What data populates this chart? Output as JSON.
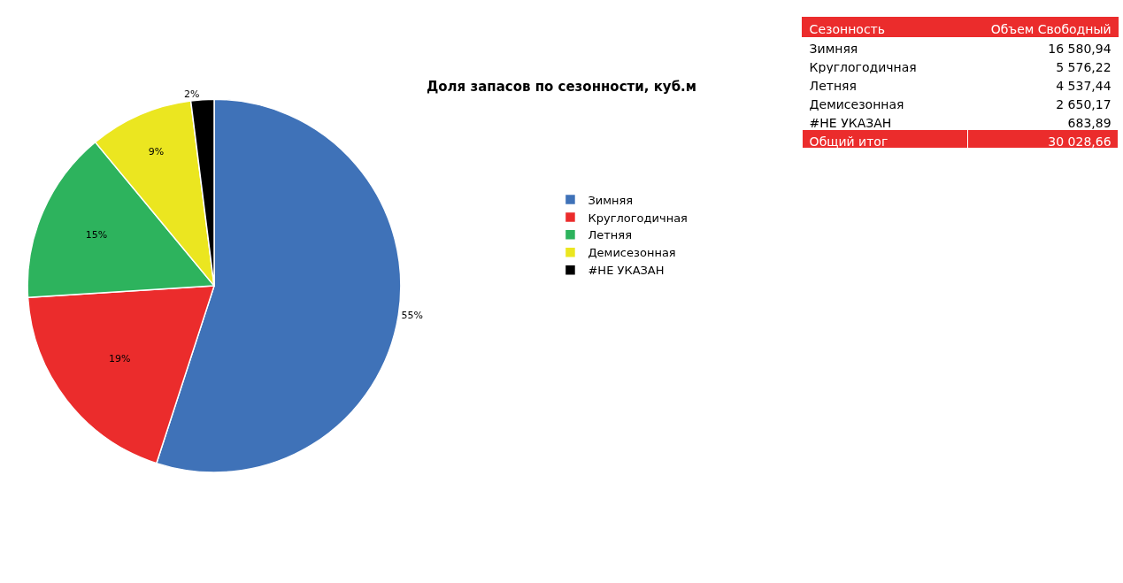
{
  "chart_data": [
    {
      "type": "pie",
      "title": "Доля запасов по сезонности, куб.м",
      "categories": [
        "Зимняя",
        "Круглогодичная",
        "Летняя",
        "Демисезонная",
        "#НЕ УКАЗАН"
      ],
      "values": [
        55,
        19,
        15,
        9,
        2
      ],
      "value_labels": [
        "55%",
        "19%",
        "15%",
        "9%",
        "2%"
      ],
      "colors": [
        "#3f72b8",
        "#eb2c2c",
        "#2db35d",
        "#ebe620",
        "#000000"
      ],
      "legend": "right"
    },
    {
      "type": "other",
      "categories": [
        "Зимняя",
        "Круглогодичная",
        "Летняя",
        "Демисезонная",
        "#НЕ УКАЗАН"
      ],
      "value_labels": [
        "16 580,94",
        "5 576,22",
        "4 537,44",
        "2 650,17",
        "683,89"
      ],
      "totals": [
        "30 028,66"
      ],
      "annotations": [
        "Сезонность",
        "Объем Свободный",
        "Общий итог"
      ]
    }
  ]
}
